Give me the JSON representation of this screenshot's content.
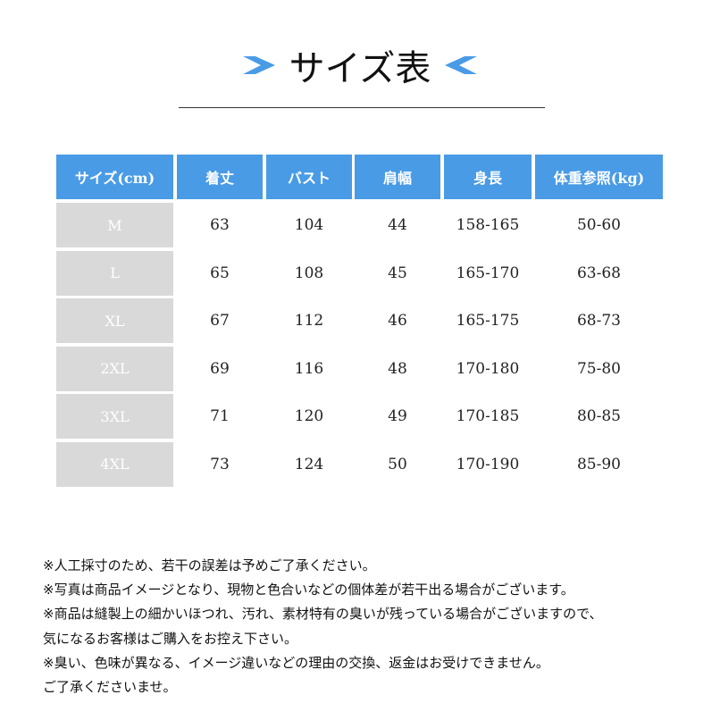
{
  "title": "サイズ表",
  "accent_color": "#4a9be6",
  "size_cell_color": "#d9d9d9",
  "table": {
    "headers": [
      "サイズ(cm)",
      "着丈",
      "バスト",
      "肩幅",
      "身長",
      "体重参照(kg)"
    ],
    "rows": [
      [
        "M",
        "63",
        "104",
        "44",
        "158-165",
        "50-60"
      ],
      [
        "L",
        "65",
        "108",
        "45",
        "165-170",
        "63-68"
      ],
      [
        "XL",
        "67",
        "112",
        "46",
        "165-175",
        "68-73"
      ],
      [
        "2XL",
        "69",
        "116",
        "48",
        "170-180",
        "75-80"
      ],
      [
        "3XL",
        "71",
        "120",
        "49",
        "170-185",
        "80-85"
      ],
      [
        "4XL",
        "73",
        "124",
        "50",
        "170-190",
        "85-90"
      ]
    ]
  },
  "notes": [
    "※人工採寸のため、若干の誤差は予めご了承ください。",
    "※写真は商品イメージとなり、現物と色合いなどの個体差が若干出る場合がございます。",
    "※商品は縫製上の細かいほつれ、汚れ、素材特有の臭いが残っている場合がございますので、",
    "気になるお客様はご購入をお控え下さい。",
    "※臭い、色味が異なる、イメージ違いなどの理由の交換、返金はお受けできません。",
    "ご了承くださいませ。"
  ]
}
